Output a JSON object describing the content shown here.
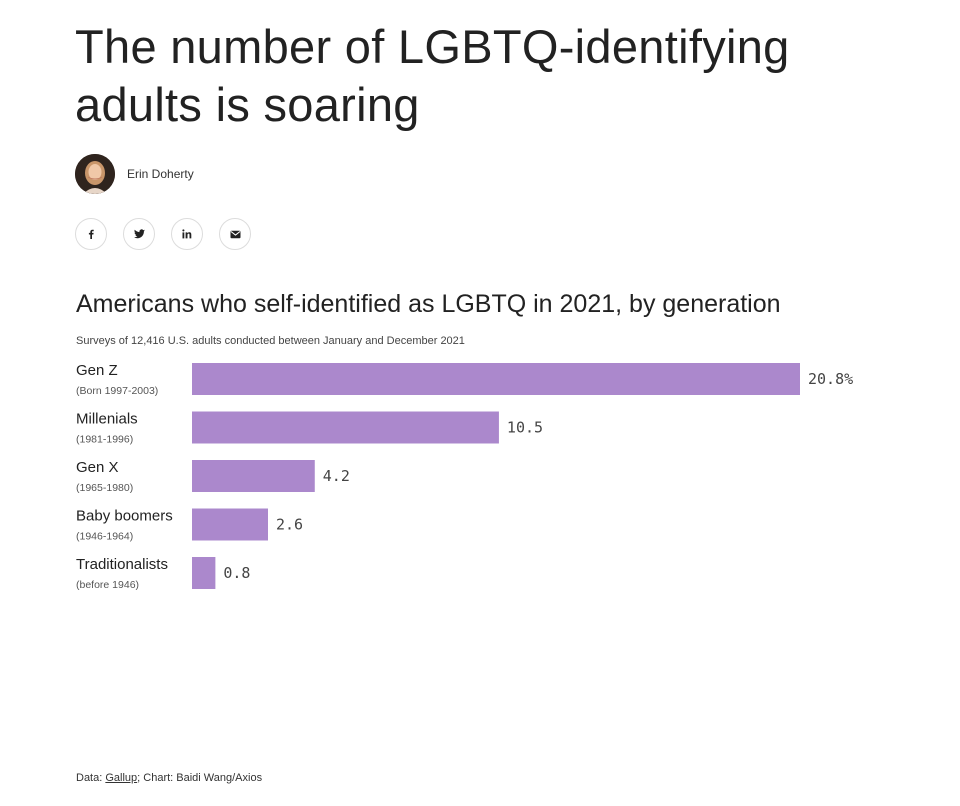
{
  "article": {
    "headline": "The number of LGBTQ-identifying adults is soaring",
    "author": "Erin Doherty"
  },
  "share_icons": [
    "facebook-icon",
    "twitter-icon",
    "linkedin-icon",
    "email-icon"
  ],
  "chart_data": {
    "type": "bar",
    "orientation": "horizontal",
    "title": "Americans who self-identified as LGBTQ in 2021, by generation",
    "subtitle": "Surveys of 12,416 U.S. adults conducted between January and December 2021",
    "categories": [
      "Gen Z",
      "Millenials",
      "Gen X",
      "Baby boomers",
      "Traditionalists"
    ],
    "category_notes": [
      "(Born 1997-2003)",
      "(1981-1996)",
      "(1965-1980)",
      "(1946-1964)",
      "(before 1946)"
    ],
    "values": [
      20.8,
      10.5,
      4.2,
      2.6,
      0.8
    ],
    "value_labels": [
      "20.8%",
      "10.5",
      "4.2",
      "2.6",
      "0.8"
    ],
    "xlim": [
      0,
      20.8
    ],
    "bar_color": "#ab88cc",
    "grid": false
  },
  "footer": {
    "prefix": "Data: ",
    "source_link": "Gallup",
    "suffix": "; Chart: Baidi Wang/Axios"
  }
}
